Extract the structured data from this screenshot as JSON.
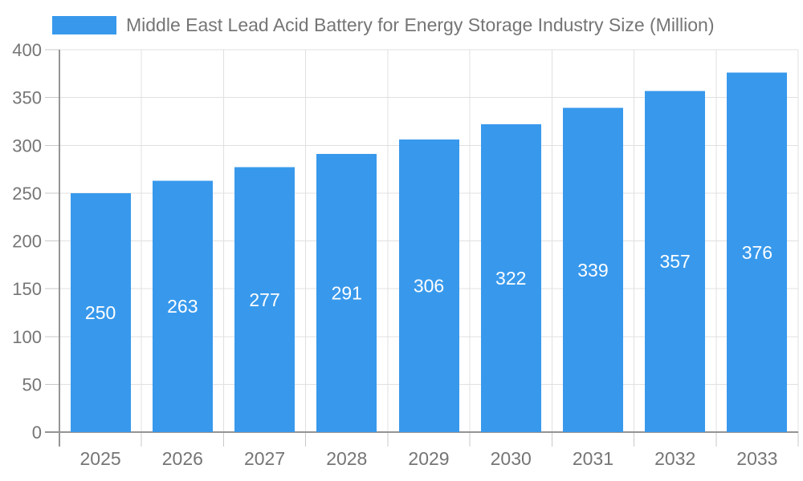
{
  "chart_data": {
    "type": "bar",
    "title": "Middle East Lead Acid Battery for Energy Storage Industry Size (Million)",
    "series_name": "Middle East Lead Acid Battery for Energy Storage Industry Size (Million)",
    "categories": [
      "2025",
      "2026",
      "2027",
      "2028",
      "2029",
      "2030",
      "2031",
      "2032",
      "2033"
    ],
    "values": [
      250,
      263,
      277,
      291,
      306,
      322,
      339,
      357,
      376
    ],
    "xlabel": "",
    "ylabel": "",
    "ylim": [
      0,
      400
    ],
    "yticks": [
      0,
      50,
      100,
      150,
      200,
      250,
      300,
      350,
      400
    ],
    "grid": true,
    "legend_position": "top-left",
    "colors": {
      "bar": "#3899ec",
      "grid": "#e0e0e0",
      "tick": "#c9c9c9",
      "axis_line": "#949494",
      "axis_text": "#757575",
      "value_label": "#ffffff",
      "background": "#ffffff"
    }
  }
}
